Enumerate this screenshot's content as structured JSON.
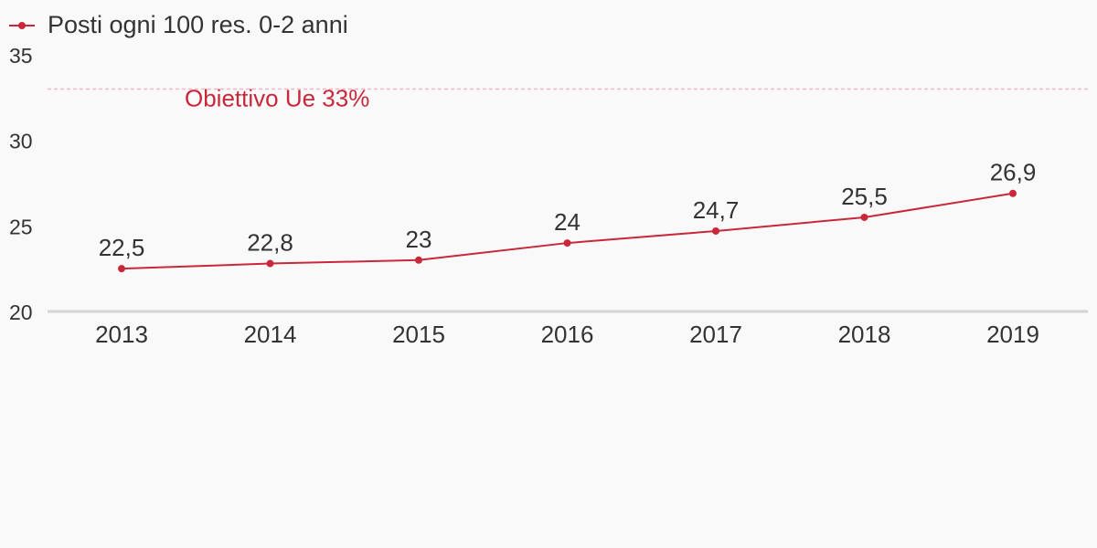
{
  "chart_data": {
    "type": "line",
    "x": [
      "2013",
      "2014",
      "2015",
      "2016",
      "2017",
      "2018",
      "2019"
    ],
    "series": [
      {
        "name": "Posti ogni 100 res. 0-2 anni",
        "values": [
          22.5,
          22.8,
          23,
          24,
          24.7,
          25.5,
          26.9
        ],
        "labels": [
          "22,5",
          "22,8",
          "23",
          "24",
          "24,7",
          "25,5",
          "26,9"
        ],
        "color": "#c8283a"
      }
    ],
    "ylim": [
      20,
      35
    ],
    "yticks": [
      "20",
      "25",
      "30",
      "35"
    ],
    "target_line": {
      "value": 33,
      "label": "Obiettivo Ue 33%",
      "color": "#f2b6c6",
      "label_color": "#c8283a"
    },
    "legend": "top-left",
    "grid": false
  }
}
